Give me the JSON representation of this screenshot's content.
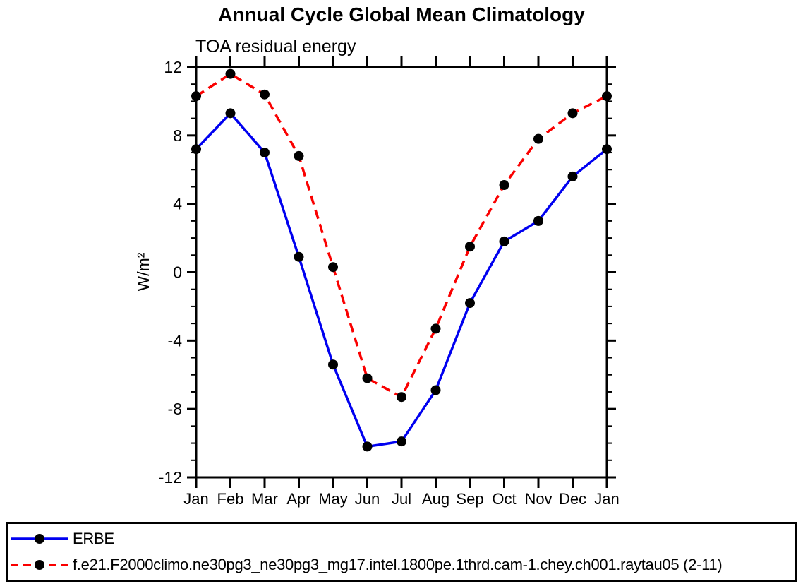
{
  "chart_data": {
    "type": "line",
    "title": "Annual Cycle Global Mean Climatology",
    "subtitle": "TOA residual energy",
    "ylabel": "W/m²",
    "xlabel": "",
    "categories": [
      "Jan",
      "Feb",
      "Mar",
      "Apr",
      "May",
      "Jun",
      "Jul",
      "Aug",
      "Sep",
      "Oct",
      "Nov",
      "Dec",
      "Jan"
    ],
    "ylim": [
      -12,
      12
    ],
    "ytick_major": [
      -12,
      -8,
      -4,
      0,
      4,
      8,
      12
    ],
    "ytick_minor_step": 1,
    "grid": false,
    "legend_position": "bottom-left-box",
    "series": [
      {
        "name": "ERBE",
        "color": "#0000f0",
        "line_style": "solid",
        "marker": "filled-circle",
        "marker_color": "#000000",
        "values": [
          7.2,
          9.3,
          7.0,
          0.9,
          -5.4,
          -10.2,
          -9.9,
          -6.9,
          -1.8,
          1.8,
          3.0,
          5.6,
          7.2
        ]
      },
      {
        "name": "f.e21.F2000climo.ne30pg3_ne30pg3_mg17.intel.1800pe.1thrd.cam-1.chey.ch001.raytau05 (2-11)",
        "color": "#fa0000",
        "line_style": "dashed",
        "marker": "filled-circle",
        "marker_color": "#000000",
        "values": [
          10.3,
          11.6,
          10.4,
          6.8,
          0.3,
          -6.2,
          -7.3,
          -3.3,
          1.5,
          5.1,
          7.8,
          9.3,
          10.3
        ]
      }
    ]
  }
}
